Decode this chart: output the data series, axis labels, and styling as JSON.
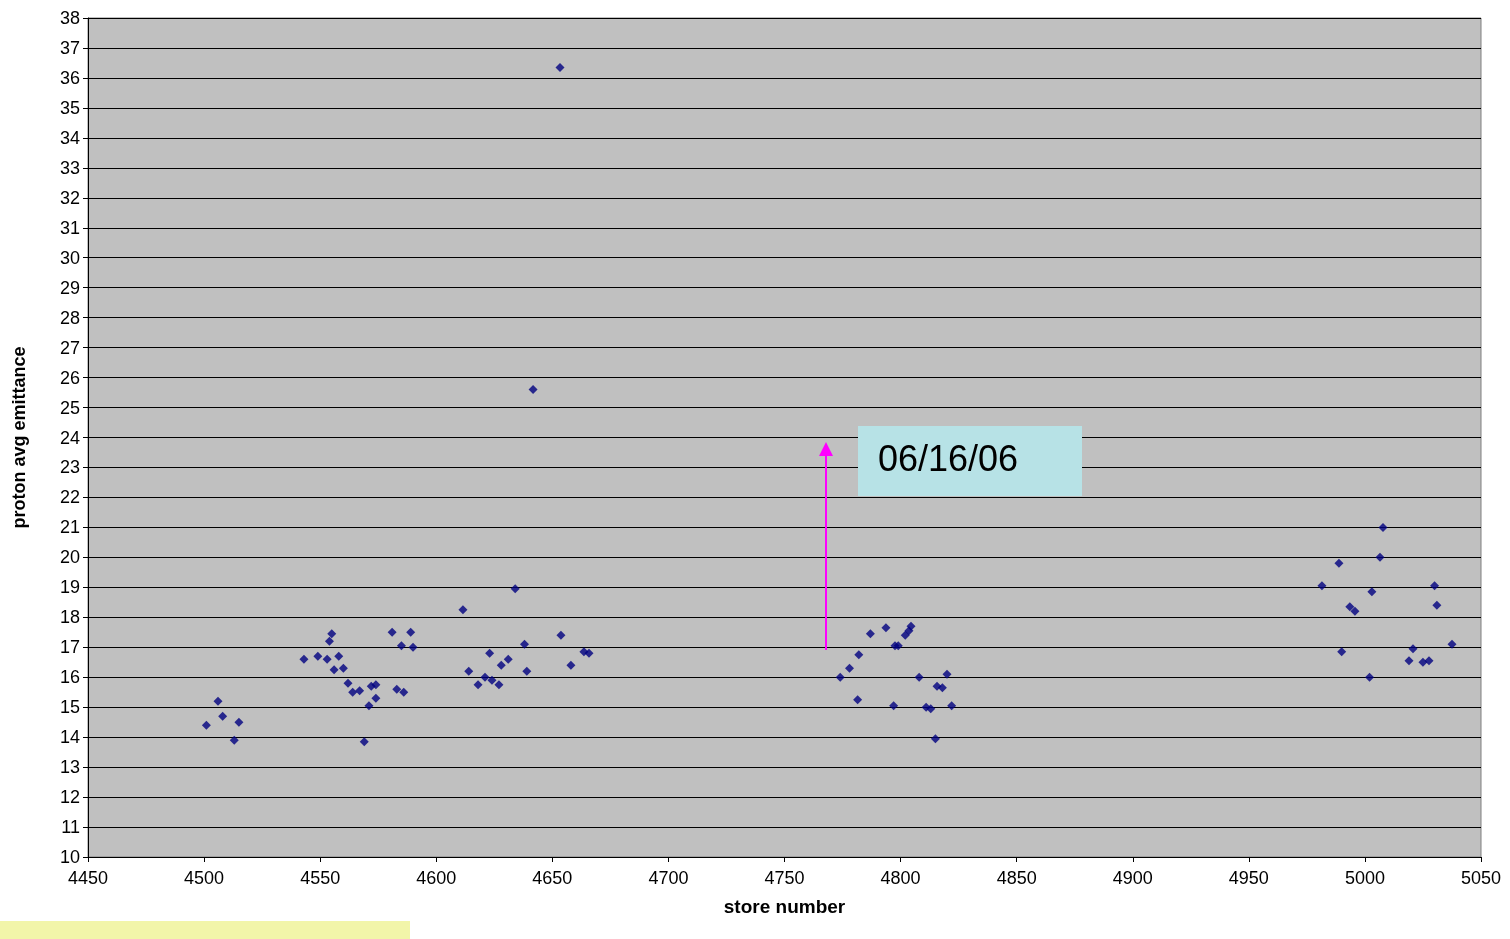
{
  "chart_data": {
    "type": "scatter",
    "xlabel": "store number",
    "ylabel": "proton avg emittance",
    "xlim": [
      4450,
      5050
    ],
    "xticks": [
      4450,
      4500,
      4550,
      4600,
      4650,
      4700,
      4750,
      4800,
      4850,
      4900,
      4950,
      5000,
      5050
    ],
    "ylim": [
      10,
      38
    ],
    "yticks": [
      10,
      11,
      12,
      13,
      14,
      15,
      16,
      17,
      18,
      19,
      20,
      21,
      22,
      23,
      24,
      25,
      26,
      27,
      28,
      29,
      30,
      31,
      32,
      33,
      34,
      35,
      36,
      37,
      38
    ],
    "grid": "y",
    "marker": "diamond",
    "series": [
      {
        "color": "#000080",
        "x": [
          4501,
          4506,
          4508,
          4513,
          4515,
          4543,
          4549,
          4553,
          4554,
          4555,
          4556,
          4558,
          4560,
          4562,
          4564,
          4567,
          4569,
          4571,
          4572,
          4574,
          4574,
          4581,
          4583,
          4585,
          4586,
          4589,
          4590,
          4611.5,
          4614,
          4618,
          4621,
          4623,
          4624,
          4627,
          4628,
          4631,
          4634,
          4638,
          4639,
          4641.7,
          4653.3,
          4653.7,
          4658,
          4663.6,
          4665.8,
          4774,
          4778,
          4781.5,
          4782,
          4787,
          4793.7,
          4797,
          4797.6,
          4799,
          4802,
          4803.6,
          4804.5,
          4808,
          4811,
          4813,
          4815,
          4815.7,
          4818,
          4820,
          4822,
          4981.5,
          4988.8,
          4990,
          4993.5,
          4995.7,
          5002,
          5003,
          5006.5,
          5007.8,
          5019,
          5020.7,
          5025,
          5027.6,
          5030,
          5031,
          5037.5
        ],
        "values": [
          14.4,
          15.2,
          14.7,
          13.9,
          14.5,
          16.6,
          16.7,
          16.6,
          17.2,
          17.45,
          16.25,
          16.7,
          16.3,
          15.8,
          15.5,
          15.55,
          13.85,
          15.05,
          15.7,
          15.75,
          15.3,
          17.5,
          15.6,
          17.05,
          15.5,
          17.5,
          17.0,
          18.25,
          16.2,
          15.75,
          16.0,
          16.8,
          15.9,
          15.75,
          16.4,
          16.6,
          18.95,
          17.1,
          16.2,
          25.6,
          36.35,
          17.4,
          16.4,
          16.85,
          16.8,
          16.0,
          16.3,
          15.25,
          16.75,
          17.45,
          17.65,
          15.05,
          17.05,
          17.05,
          17.4,
          17.55,
          17.7,
          16.0,
          15.0,
          14.95,
          13.95,
          15.7,
          15.65,
          16.1,
          15.05,
          19.05,
          19.8,
          16.85,
          18.35,
          18.2,
          16.0,
          18.85,
          20.0,
          21.0,
          16.55,
          16.95,
          16.5,
          16.55,
          19.05,
          18.4,
          17.1
        ]
      }
    ],
    "annotations": [
      "06/16/06"
    ]
  }
}
